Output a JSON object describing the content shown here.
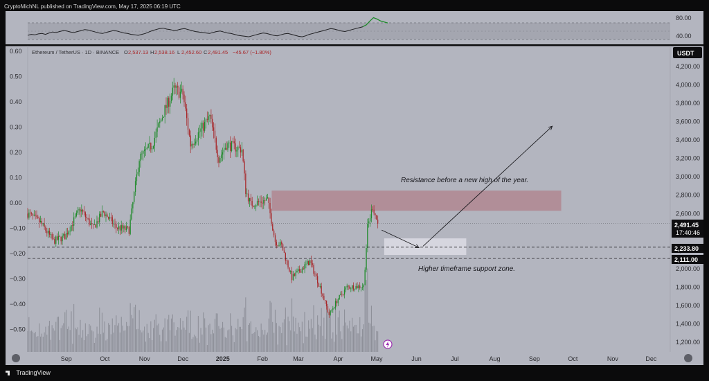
{
  "header": {
    "text": "CryptoMichNL published on TradingView.com, May 17, 2025 06:19 UTC"
  },
  "footer": {
    "brand": "TradingView"
  },
  "legend": {
    "symbol": "Ethereum / TetherUS · 1D · BINANCE",
    "o_label": "O",
    "o": "2,537.13",
    "h_label": "H",
    "h": "2,538.16",
    "l_label": "L",
    "l": "2,452.60",
    "c_label": "C",
    "c": "2,491.45",
    "change": "−45.67 (−1.80%)"
  },
  "colors": {
    "bg": "#b3b5bf",
    "up": "#1e8a2a",
    "down": "#a8282b",
    "resistance": "#b08a93",
    "support": "#e1e2ea",
    "accent_black": "#0e0e10"
  },
  "indicator": {
    "right_ticks": [
      "80.00",
      "40.00"
    ],
    "values": [
      48,
      50,
      49,
      51,
      52,
      50,
      53,
      55,
      54,
      56,
      58,
      57,
      55,
      54,
      56,
      58,
      60,
      59,
      57,
      55,
      53,
      52,
      54,
      56,
      58,
      57,
      55,
      53,
      52,
      50,
      49,
      48,
      50,
      52,
      55,
      58,
      60,
      62,
      63,
      61,
      60,
      58,
      59,
      61,
      62,
      60,
      58,
      56,
      55,
      54,
      53,
      52,
      54,
      56,
      57,
      55,
      53,
      52,
      50,
      48,
      47,
      46,
      45,
      47,
      49,
      51,
      53,
      52,
      50,
      48,
      47,
      49,
      51,
      52,
      50,
      48,
      46,
      45,
      47,
      50,
      52,
      54,
      56,
      58,
      60,
      62,
      61,
      59,
      57,
      56,
      58,
      60,
      62,
      64,
      66,
      70,
      78,
      85,
      82,
      78,
      76,
      74
    ]
  },
  "annotations": {
    "resistance": "Resistance before a new high of the year.",
    "support": "Higher timeframe support zone."
  },
  "chart_data": {
    "type": "candlestick",
    "title": "Ethereum / TetherUS · 1D · BINANCE",
    "xlabel": "",
    "ylabel": "",
    "price_axis": {
      "unit_label": "USDT",
      "ticks": [
        "4,200.00",
        "4,000.00",
        "3,800.00",
        "3,600.00",
        "3,400.00",
        "3,200.00",
        "3,000.00",
        "2,800.00",
        "2,600.00",
        "2,400.00",
        "2,200.00",
        "2,000.00",
        "1,800.00",
        "1,600.00",
        "1,400.00",
        "1,200.00"
      ],
      "ylim": [
        1120,
        4600
      ]
    },
    "left_axis": {
      "ticks": [
        "0.60",
        "0.50",
        "0.40",
        "0.30",
        "0.20",
        "0.10",
        "0.00",
        "−0.10",
        "−0.20",
        "−0.30",
        "−0.40",
        "−0.50"
      ]
    },
    "month_labels": [
      "Sep",
      "Oct",
      "Nov",
      "Dec",
      "2025",
      "Feb",
      "Mar",
      "Apr",
      "May",
      "Jun",
      "Jul",
      "Aug",
      "Sep",
      "Oct",
      "Nov",
      "Dec"
    ],
    "price_labels": {
      "last": "2,491.45",
      "countdown": "17:40:46",
      "level_1": "2,233.80",
      "level_2": "2,111.00"
    },
    "levels": [
      2233.8,
      2111.0
    ],
    "resistance_zone": [
      2630,
      2850
    ],
    "support_zone": [
      2150,
      2330
    ],
    "anchors": [
      [
        "2024-08-17",
        2600
      ],
      [
        "2024-08-27",
        2500
      ],
      [
        "2024-09-06",
        2300
      ],
      [
        "2024-09-15",
        2350
      ],
      [
        "2024-09-27",
        2650
      ],
      [
        "2024-10-07",
        2440
      ],
      [
        "2024-10-15",
        2620
      ],
      [
        "2024-10-25",
        2450
      ],
      [
        "2024-11-04",
        2420
      ],
      [
        "2024-11-12",
        3200
      ],
      [
        "2024-11-22",
        3350
      ],
      [
        "2024-12-01",
        3700
      ],
      [
        "2024-12-09",
        3950
      ],
      [
        "2024-12-16",
        3900
      ],
      [
        "2024-12-22",
        3350
      ],
      [
        "2025-01-06",
        3650
      ],
      [
        "2025-01-13",
        3200
      ],
      [
        "2025-01-19",
        3350
      ],
      [
        "2025-01-31",
        3300
      ],
      [
        "2025-02-03",
        2850
      ],
      [
        "2025-02-07",
        2700
      ],
      [
        "2025-02-20",
        2750
      ],
      [
        "2025-02-26",
        2300
      ],
      [
        "2025-03-03",
        2250
      ],
      [
        "2025-03-11",
        1900
      ],
      [
        "2025-03-25",
        2080
      ],
      [
        "2025-04-02",
        1800
      ],
      [
        "2025-04-09",
        1500
      ],
      [
        "2025-04-15",
        1650
      ],
      [
        "2025-04-23",
        1800
      ],
      [
        "2025-05-06",
        1810
      ],
      [
        "2025-05-09",
        2450
      ],
      [
        "2025-05-13",
        2680
      ],
      [
        "2025-05-17",
        2491
      ]
    ],
    "volume_hint": "daily volume bars at bottom"
  }
}
